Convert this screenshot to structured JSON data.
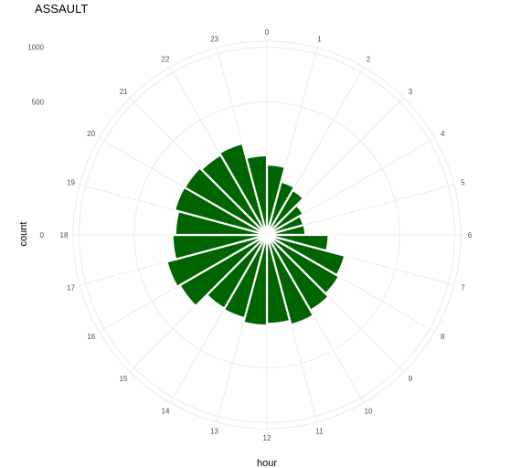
{
  "chart_data": {
    "type": "bar",
    "coord": "polar",
    "title": "ASSAULT",
    "xlabel": "hour",
    "ylabel": "count",
    "categories": [
      "0",
      "1",
      "2",
      "3",
      "4",
      "5",
      "6",
      "7",
      "8",
      "9",
      "10",
      "11",
      "12",
      "13",
      "14",
      "15",
      "16",
      "17",
      "18",
      "19",
      "20",
      "21",
      "22",
      "23"
    ],
    "values": [
      140,
      86,
      76,
      50,
      41,
      42,
      108,
      185,
      197,
      216,
      246,
      224,
      233,
      211,
      205,
      288,
      305,
      253,
      238,
      259,
      256,
      243,
      255,
      180
    ],
    "r_ticks": [
      0,
      500,
      1000
    ],
    "r_tick_labels": [
      "0",
      "500",
      "1000"
    ],
    "bar_color": "#006400",
    "grid": true
  }
}
